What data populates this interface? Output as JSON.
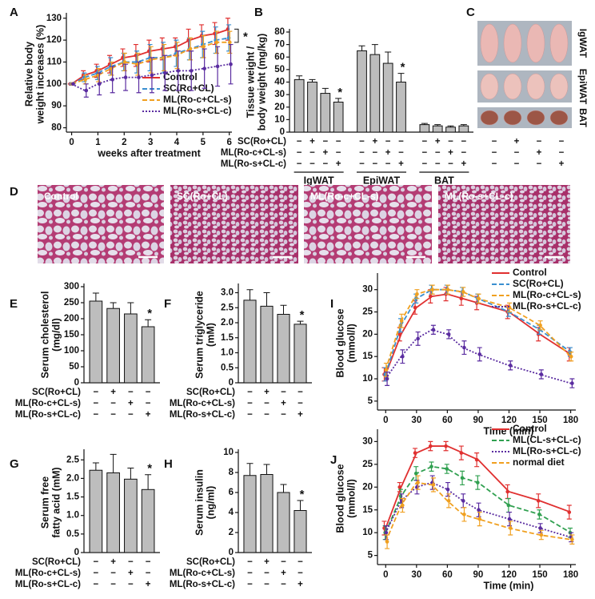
{
  "chart_data": [
    {
      "panel": "A",
      "type": "line",
      "ylabel": [
        "Relative body",
        "weight increases (%)"
      ],
      "xlabel": "weeks after treatment",
      "x": [
        0,
        0.5,
        1,
        1.5,
        2,
        2.5,
        3,
        3.5,
        4,
        4.5,
        5,
        5.5,
        6
      ],
      "xlim": [
        -0.2,
        6.1
      ],
      "xticks": [
        0,
        1,
        2,
        3,
        4,
        5,
        6
      ],
      "ylim": [
        78,
        131
      ],
      "yticks": [
        80,
        90,
        100,
        110,
        120,
        130
      ],
      "legend": "lower right",
      "annotation": "*",
      "series": [
        {
          "name": "Control",
          "color": "#e03030",
          "style": "solid",
          "values": [
            100,
            104,
            106,
            109,
            112,
            113,
            115,
            116,
            117,
            120,
            122,
            123,
            125
          ],
          "errors": [
            0,
            2,
            3,
            4,
            4,
            5,
            5,
            5,
            4,
            5,
            5,
            5,
            5
          ]
        },
        {
          "name": "SC(Ro+CL)",
          "color": "#3a8fd0",
          "style": "dashed",
          "values": [
            100,
            103,
            105,
            108,
            110,
            110,
            112,
            112,
            114,
            116,
            118,
            120,
            121
          ],
          "errors": [
            0,
            2,
            3,
            4,
            4,
            5,
            6,
            7,
            6,
            5,
            6,
            6,
            6
          ]
        },
        {
          "name": "ML(Ro-c+CL-s)",
          "color": "#f0a020",
          "style": "dashed",
          "values": [
            100,
            102,
            104,
            107,
            110,
            109,
            111,
            112,
            113,
            116,
            117,
            119,
            119
          ],
          "errors": [
            0,
            2,
            3,
            3,
            4,
            5,
            6,
            6,
            6,
            5,
            5,
            5,
            5
          ]
        },
        {
          "name": "ML(Ro-s+CL-c)",
          "color": "#5a2ca0",
          "style": "dotted",
          "values": [
            100,
            97,
            100,
            102,
            103,
            103,
            104,
            105,
            106,
            106,
            107,
            108,
            109
          ],
          "errors": [
            0,
            3,
            5,
            6,
            6,
            7,
            8,
            8,
            9,
            9,
            9,
            9,
            9
          ]
        }
      ]
    },
    {
      "panel": "B",
      "type": "bar",
      "ylabel": [
        "Tissue weight /",
        "body weight (mg/kg)"
      ],
      "color": "#bdbdbd",
      "ylim": [
        0,
        80
      ],
      "yticks": [
        0,
        10,
        20,
        30,
        40,
        50,
        60,
        70,
        80
      ],
      "values": [
        42,
        40,
        31,
        24,
        65,
        62,
        55,
        40,
        6,
        5,
        4,
        5
      ],
      "errors": [
        3,
        2,
        4,
        3,
        4,
        8,
        9,
        7,
        1,
        1,
        1,
        1
      ],
      "significance": [
        null,
        null,
        null,
        "*",
        null,
        null,
        null,
        "*",
        null,
        null,
        null,
        null
      ],
      "groups": [
        "IgWAT",
        "EpiWAT",
        "BAT"
      ],
      "treatments": [
        {
          "name": "SC(Ro+CL)",
          "signs": [
            "−",
            "+",
            "−",
            "−",
            "−",
            "+",
            "−",
            "−",
            "−",
            "+",
            "−",
            "−"
          ]
        },
        {
          "name": "ML(Ro-c+CL-s)",
          "signs": [
            "−",
            "−",
            "+",
            "−",
            "−",
            "−",
            "+",
            "−",
            "−",
            "−",
            "+",
            "−"
          ]
        },
        {
          "name": "ML(Ro-s+CL-c)",
          "signs": [
            "−",
            "−",
            "−",
            "+",
            "−",
            "−",
            "−",
            "+",
            "−",
            "−",
            "−",
            "+"
          ]
        }
      ]
    },
    {
      "panel": "E",
      "type": "bar",
      "ylabel": [
        "Serum cholesterol",
        "(mg/dl)"
      ],
      "color": "#bdbdbd",
      "ylim": [
        0,
        300
      ],
      "yticks": [
        0,
        50,
        100,
        150,
        200,
        250,
        300
      ],
      "values": [
        255,
        232,
        215,
        175
      ],
      "errors": [
        25,
        18,
        35,
        22
      ],
      "significance": [
        null,
        null,
        null,
        "*"
      ],
      "treatments": [
        {
          "name": "SC(Ro+CL)",
          "signs": [
            "−",
            "+",
            "−",
            "−"
          ]
        },
        {
          "name": "ML(Ro-c+CL-s)",
          "signs": [
            "−",
            "−",
            "+",
            "−"
          ]
        },
        {
          "name": "ML(Ro-s+CL-c)",
          "signs": [
            "−",
            "−",
            "−",
            "+"
          ]
        }
      ]
    },
    {
      "panel": "F",
      "type": "bar",
      "ylabel": [
        "Serum triglyceride",
        "(mM)"
      ],
      "color": "#bdbdbd",
      "ylim": [
        0,
        3.2
      ],
      "yticks": [
        0,
        0.5,
        {
          "value": 1,
          "label": "1.0"
        },
        1.5,
        {
          "value": 2,
          "label": "2.0"
        },
        2.5,
        {
          "value": 3,
          "label": "3.0"
        }
      ],
      "values": [
        2.75,
        2.55,
        2.28,
        1.95
      ],
      "errors": [
        0.35,
        0.45,
        0.3,
        0.1
      ],
      "significance": [
        null,
        null,
        null,
        "*"
      ],
      "treatments": [
        {
          "name": "SC(Ro+CL)",
          "signs": [
            "−",
            "+",
            "−",
            "−"
          ]
        },
        {
          "name": "ML(Ro-c+CL-s)",
          "signs": [
            "−",
            "−",
            "+",
            "−"
          ]
        },
        {
          "name": "ML(Ro-s+CL-c)",
          "signs": [
            "−",
            "−",
            "−",
            "+"
          ]
        }
      ]
    },
    {
      "panel": "G",
      "type": "bar",
      "ylabel": [
        "Serum free",
        "fatty acid (mM)"
      ],
      "color": "#bdbdbd",
      "ylim": [
        0,
        2.7
      ],
      "yticks": [
        0,
        0.5,
        {
          "value": 1,
          "label": "1.0"
        },
        1.5,
        {
          "value": 2,
          "label": "2.0"
        },
        2.5
      ],
      "values": [
        2.22,
        2.15,
        1.98,
        1.7
      ],
      "errors": [
        0.2,
        0.5,
        0.3,
        0.4
      ],
      "significance": [
        null,
        null,
        null,
        "*"
      ],
      "treatments": [
        {
          "name": "SC(Ro+CL)",
          "signs": [
            "−",
            "+",
            "−",
            "−"
          ]
        },
        {
          "name": "ML(Ro-c+CL-s)",
          "signs": [
            "−",
            "−",
            "+",
            "−"
          ]
        },
        {
          "name": "ML(Ro-s+CL-c)",
          "signs": [
            "−",
            "−",
            "−",
            "+"
          ]
        }
      ]
    },
    {
      "panel": "H",
      "type": "bar",
      "ylabel": [
        "Serum insulin",
        "(ng/ml)"
      ],
      "color": "#bdbdbd",
      "ylim": [
        0,
        10
      ],
      "yticks": [
        0,
        2,
        4,
        6,
        8,
        10
      ],
      "values": [
        7.7,
        7.8,
        6.0,
        4.2
      ],
      "errors": [
        1.2,
        1.0,
        0.8,
        1.0
      ],
      "significance": [
        null,
        null,
        null,
        "*"
      ],
      "treatments": [
        {
          "name": "SC(Ro+CL)",
          "signs": [
            "−",
            "+",
            "−",
            "−"
          ]
        },
        {
          "name": "ML(Ro-c+CL-s)",
          "signs": [
            "−",
            "−",
            "+",
            "−"
          ]
        },
        {
          "name": "ML(Ro-s+CL-c)",
          "signs": [
            "−",
            "−",
            "−",
            "+"
          ]
        }
      ]
    },
    {
      "panel": "I",
      "type": "line",
      "ylabel": [
        "Blood glucose",
        "(mmol/l)"
      ],
      "xlabel": "Time (min)",
      "x": [
        0,
        15,
        30,
        45,
        60,
        75,
        90,
        120,
        150,
        180
      ],
      "xlim": [
        -8,
        185
      ],
      "xticks": [
        0,
        30,
        60,
        90,
        120,
        150,
        180
      ],
      "ylim": [
        3,
        33
      ],
      "yticks": [
        5,
        10,
        15,
        20,
        25,
        30
      ],
      "legend": "upper right",
      "series": [
        {
          "name": "Control",
          "color": "#e03030",
          "style": "solid",
          "values": [
            11,
            20,
            26,
            28.5,
            29,
            28,
            27,
            25,
            20,
            15.5
          ],
          "errors": [
            1.5,
            1.5,
            1.5,
            1.5,
            1.5,
            1.5,
            1.5,
            1.5,
            1.5,
            1.5
          ]
        },
        {
          "name": "SC(Ro+CL)",
          "color": "#3a8fd0",
          "style": "dashed",
          "values": [
            11,
            22,
            28,
            30,
            30,
            29.5,
            28,
            25,
            21,
            16
          ],
          "errors": [
            1.5,
            1.5,
            1,
            1,
            1,
            1,
            1,
            1,
            1,
            1
          ]
        },
        {
          "name": "ML(Ro-c+CL-s)",
          "color": "#f0a020",
          "style": "dashed",
          "values": [
            12,
            23,
            29,
            30,
            30,
            29.5,
            28,
            26,
            22,
            15
          ],
          "errors": [
            1.5,
            1.5,
            1,
            1,
            1,
            1,
            1,
            1,
            1,
            1
          ]
        },
        {
          "name": "ML(Ro-s+CL-c)",
          "color": "#5a2ca0",
          "style": "dotted",
          "values": [
            10,
            15,
            19,
            21,
            20,
            17,
            15.5,
            13,
            11,
            9
          ],
          "errors": [
            1.5,
            1.5,
            1.5,
            1,
            1,
            1.5,
            1.5,
            1,
            1,
            1
          ]
        }
      ]
    },
    {
      "panel": "J",
      "type": "line",
      "ylabel": [
        "Blood glucose",
        "(mmol/l)"
      ],
      "xlabel": "Time (min)",
      "x": [
        0,
        15,
        30,
        45,
        60,
        75,
        90,
        120,
        150,
        180
      ],
      "xlim": [
        -8,
        185
      ],
      "xticks": [
        0,
        30,
        60,
        90,
        120,
        150,
        180
      ],
      "ylim": [
        3,
        32
      ],
      "yticks": [
        5,
        10,
        15,
        20,
        25,
        30
      ],
      "legend": "upper right",
      "series": [
        {
          "name": "Control",
          "color": "#e03030",
          "style": "solid",
          "values": [
            11,
            20,
            27.5,
            29,
            29,
            27.5,
            26,
            19,
            17,
            14.5
          ],
          "errors": [
            1.5,
            1,
            1,
            1,
            1,
            1.5,
            1.5,
            1.5,
            1.5,
            1.5
          ]
        },
        {
          "name": "ML(CL-s+CL-c)",
          "color": "#30a050",
          "style": "dashed",
          "values": [
            10,
            18,
            23,
            24.5,
            24,
            22,
            21,
            16,
            14,
            10
          ],
          "errors": [
            1.5,
            1.5,
            1.5,
            1,
            1,
            1.5,
            1.5,
            1.5,
            1,
            1
          ]
        },
        {
          "name": "ML(Ro-s+CL-c)",
          "color": "#5a2ca0",
          "style": "dotted",
          "values": [
            10,
            17,
            20,
            21,
            19.5,
            17,
            15,
            13,
            11,
            9
          ],
          "errors": [
            1.5,
            1.5,
            1.5,
            1.5,
            1.5,
            1.5,
            1.5,
            1.5,
            1,
            1
          ]
        },
        {
          "name": "normal diet",
          "color": "#f0a020",
          "style": "dashed",
          "values": [
            8,
            16,
            21,
            20.5,
            17,
            14,
            13,
            11,
            9.5,
            8.5
          ],
          "errors": [
            1.5,
            1.5,
            1.5,
            1.5,
            1.5,
            1.5,
            1.5,
            1.5,
            1,
            1
          ]
        }
      ]
    }
  ],
  "images": [
    {
      "panel": "C",
      "labels": [
        "IgWAT",
        "EpiWAT",
        "BAT"
      ],
      "treatments": [
        {
          "signs": [
            "−",
            "+",
            "−",
            "−"
          ]
        },
        {
          "signs": [
            "−",
            "−",
            "+",
            "−"
          ]
        },
        {
          "signs": [
            "−",
            "−",
            "−",
            "+"
          ]
        }
      ]
    },
    {
      "panel": "D",
      "labels": [
        "Control",
        "SC(Ro+CL)",
        "ML(Ro-c+CL-s)",
        "ML(Ro-s+CL-c)"
      ]
    }
  ]
}
